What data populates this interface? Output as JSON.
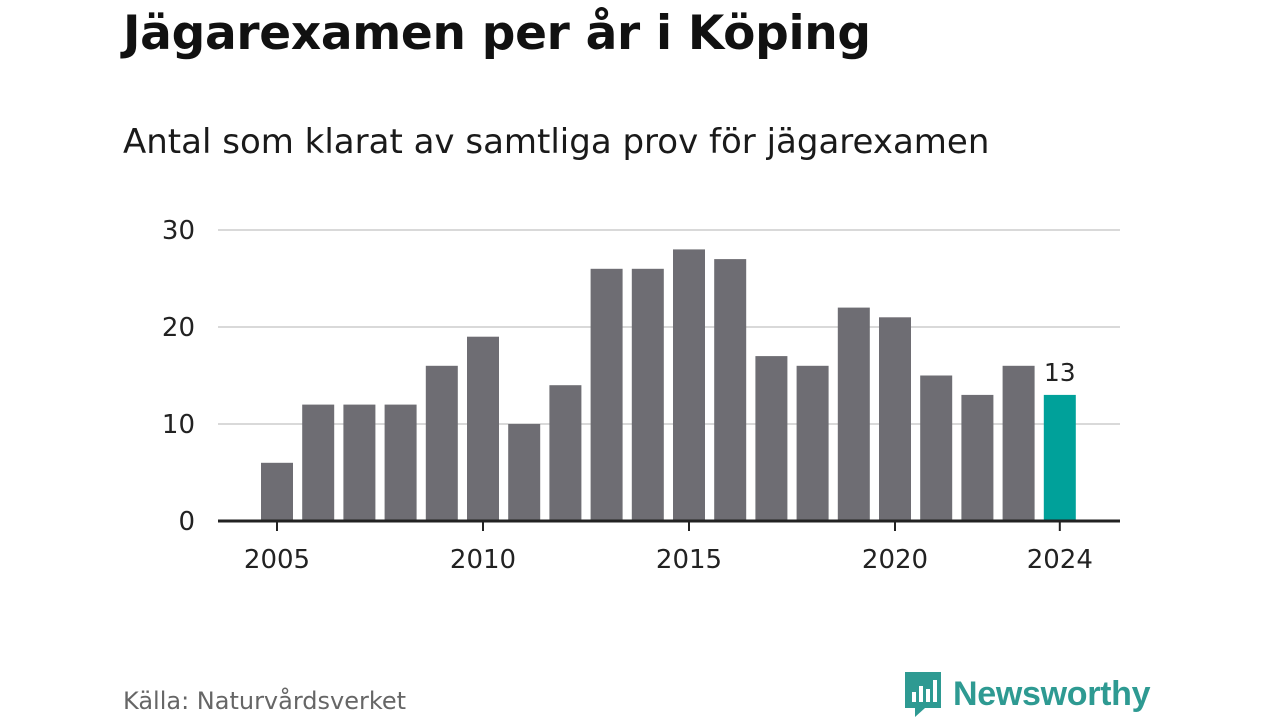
{
  "title": "Jägarexamen per år i Köping",
  "subtitle": "Antal som klarat av samtliga prov för jägarexamen",
  "source": "Källa: Naturvårdsverket",
  "brand": {
    "name": "Newsworthy",
    "icon": "newsworthy-logo-icon",
    "color": "#2e9a92"
  },
  "colors": {
    "bar": "#6e6d73",
    "highlight": "#00a19a",
    "grid": "#d9d9d9",
    "axis": "#222222"
  },
  "chart_data": {
    "type": "bar",
    "categories": [
      "2005",
      "2006",
      "2007",
      "2008",
      "2009",
      "2010",
      "2011",
      "2012",
      "2013",
      "2014",
      "2015",
      "2016",
      "2017",
      "2018",
      "2019",
      "2020",
      "2021",
      "2022",
      "2023",
      "2024"
    ],
    "values": [
      6,
      12,
      12,
      12,
      16,
      19,
      10,
      14,
      26,
      26,
      28,
      27,
      17,
      16,
      22,
      21,
      15,
      13,
      16,
      13
    ],
    "x_tick_labels": [
      "2005",
      "2010",
      "2015",
      "2020",
      "2024"
    ],
    "y_ticks": [
      0,
      10,
      20,
      30
    ],
    "ylim": [
      0,
      30
    ],
    "highlight": {
      "category": "2024",
      "label": "13"
    },
    "grid": true
  }
}
